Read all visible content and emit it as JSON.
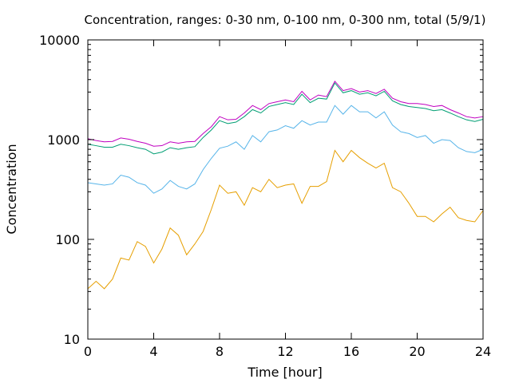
{
  "chart_data": {
    "type": "line",
    "title": "Concentration, ranges: 0-30 nm, 0-100 nm, 0-300 nm, total (5/9/1)",
    "xlabel": "Time [hour]",
    "ylabel": "Concentration",
    "xlim": [
      0,
      24
    ],
    "ylim": [
      10,
      10000
    ],
    "yscale": "log",
    "grid": false,
    "legend": "none",
    "x_ticks": [
      "0",
      "4",
      "8",
      "12",
      "16",
      "20",
      "24"
    ],
    "y_ticks": [
      "10",
      "100",
      "1000",
      "10000"
    ],
    "x": [
      0,
      0.5,
      1,
      1.5,
      2,
      2.5,
      3,
      3.5,
      4,
      4.5,
      5,
      5.5,
      6,
      6.5,
      7,
      7.5,
      8,
      8.5,
      9,
      9.5,
      10,
      10.5,
      11,
      11.5,
      12,
      12.5,
      13,
      13.5,
      14,
      14.5,
      15,
      15.5,
      16,
      16.5,
      17,
      17.5,
      18,
      18.5,
      19,
      19.5,
      20,
      20.5,
      21,
      21.5,
      22,
      22.5,
      23,
      23.5,
      24
    ],
    "series": [
      {
        "color": "#c000c0",
        "values": [
          1020,
          980,
          950,
          960,
          1040,
          1010,
          960,
          920,
          860,
          870,
          950,
          920,
          950,
          960,
          1150,
          1350,
          1700,
          1580,
          1600,
          1850,
          2200,
          2000,
          2300,
          2400,
          2500,
          2400,
          3050,
          2500,
          2800,
          2700,
          3850,
          3100,
          3250,
          3000,
          3100,
          2900,
          3200,
          2600,
          2400,
          2300,
          2300,
          2250,
          2150,
          2200,
          2000,
          1850,
          1700,
          1650,
          1700
        ]
      },
      {
        "color": "#009e73",
        "values": [
          900,
          870,
          840,
          840,
          900,
          870,
          830,
          800,
          720,
          750,
          830,
          800,
          830,
          850,
          1050,
          1250,
          1550,
          1450,
          1500,
          1700,
          2000,
          1850,
          2150,
          2250,
          2350,
          2250,
          2850,
          2350,
          2600,
          2550,
          3700,
          2950,
          3100,
          2850,
          2950,
          2750,
          3050,
          2450,
          2250,
          2150,
          2100,
          2050,
          1950,
          2000,
          1850,
          1700,
          1580,
          1520,
          1600
        ]
      },
      {
        "color": "#56b4e9",
        "values": [
          370,
          360,
          350,
          360,
          440,
          420,
          370,
          350,
          290,
          320,
          390,
          340,
          320,
          360,
          500,
          650,
          820,
          860,
          950,
          800,
          1100,
          950,
          1200,
          1250,
          1380,
          1300,
          1550,
          1400,
          1500,
          1500,
          2200,
          1800,
          2200,
          1900,
          1900,
          1650,
          1900,
          1400,
          1200,
          1150,
          1050,
          1100,
          920,
          1000,
          980,
          830,
          760,
          740,
          800
        ]
      },
      {
        "color": "#e69f00",
        "values": [
          32,
          38,
          32,
          40,
          65,
          62,
          95,
          85,
          58,
          80,
          130,
          110,
          70,
          90,
          120,
          200,
          350,
          290,
          300,
          220,
          330,
          300,
          400,
          330,
          350,
          360,
          230,
          340,
          340,
          380,
          780,
          600,
          780,
          660,
          580,
          520,
          580,
          330,
          300,
          230,
          170,
          170,
          150,
          180,
          210,
          165,
          155,
          150,
          195
        ]
      }
    ]
  }
}
